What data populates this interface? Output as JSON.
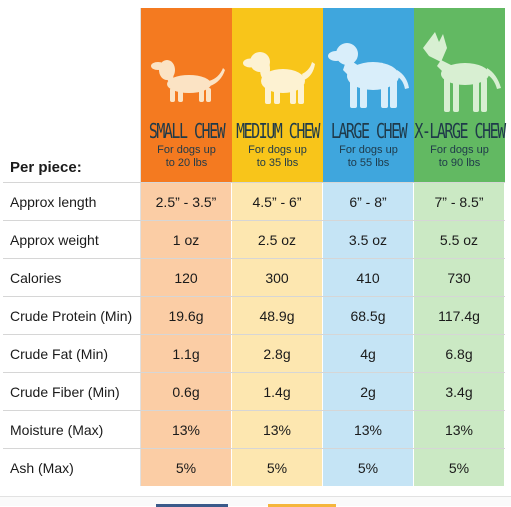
{
  "header": {
    "per_piece": "Per piece:"
  },
  "columns": [
    {
      "name": "SMALL CHEW",
      "sub_line1": "For dogs up",
      "sub_line2": "to 20 lbs",
      "color": "#f47a20",
      "icon": "dachshund-icon"
    },
    {
      "name": "MEDIUM CHEW",
      "sub_line1": "For dogs up",
      "sub_line2": "to 35 lbs",
      "color": "#f8c51a",
      "icon": "spaniel-icon"
    },
    {
      "name": "LARGE CHEW",
      "sub_line1": "For dogs up",
      "sub_line2": "to 55 lbs",
      "color": "#3fa6dd",
      "icon": "retriever-icon"
    },
    {
      "name": "X-LARGE CHEW",
      "sub_line1": "For dogs up",
      "sub_line2": "to 90 lbs",
      "color": "#62b962",
      "icon": "great-dane-icon"
    }
  ],
  "rows": [
    {
      "label": "Approx length",
      "values": [
        "2.5” - 3.5”",
        "4.5” - 6”",
        "6” - 8”",
        "7” - 8.5”"
      ]
    },
    {
      "label": "Approx weight",
      "values": [
        "1 oz",
        "2.5 oz",
        "3.5 oz",
        "5.5 oz"
      ]
    },
    {
      "label": "Calories",
      "values": [
        "120",
        "300",
        "410",
        "730"
      ]
    },
    {
      "label": "Crude Protein (Min)",
      "values": [
        "19.6g",
        "48.9g",
        "68.5g",
        "117.4g"
      ]
    },
    {
      "label": "Crude Fat (Min)",
      "values": [
        "1.1g",
        "2.8g",
        "4g",
        "6.8g"
      ]
    },
    {
      "label": "Crude Fiber (Min)",
      "values": [
        "0.6g",
        "1.4g",
        "2g",
        "3.4g"
      ]
    },
    {
      "label": "Moisture (Max)",
      "values": [
        "13%",
        "13%",
        "13%",
        "13%"
      ]
    },
    {
      "label": "Ash (Max)",
      "values": [
        "5%",
        "5%",
        "5%",
        "5%"
      ]
    }
  ]
}
